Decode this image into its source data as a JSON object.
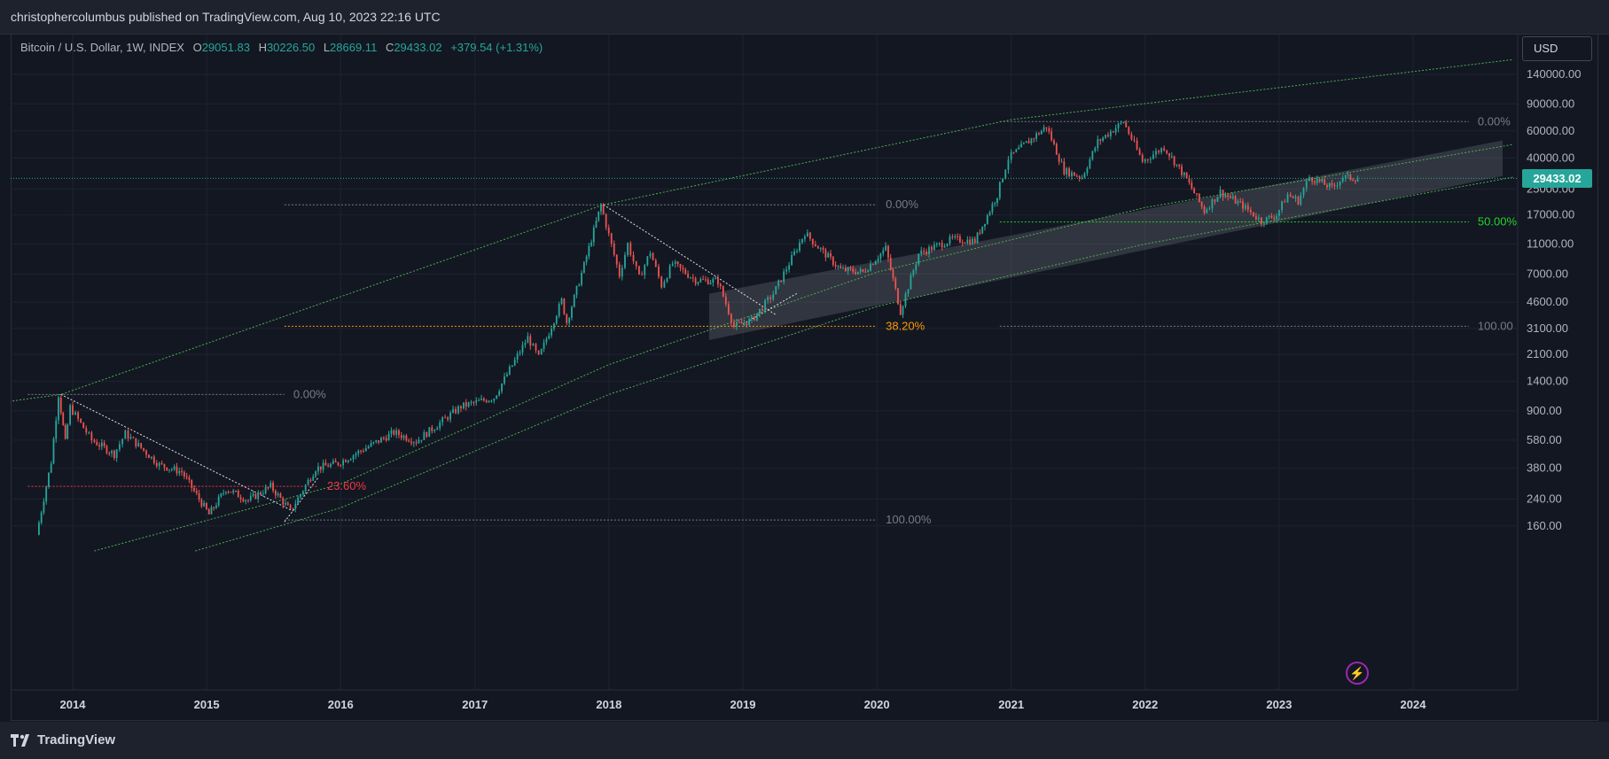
{
  "header": {
    "published": "christophercolumbus published on TradingView.com, Aug 10, 2023 22:16 UTC"
  },
  "legend": {
    "symbol": "Bitcoin / U.S. Dollar, 1W, INDEX",
    "o_label": "O",
    "o_value": "29051.83",
    "h_label": "H",
    "h_value": "30226.50",
    "l_label": "L",
    "l_value": "28669.11",
    "c_label": "C",
    "c_value": "29433.02",
    "change": "+379.54 (+1.31%)"
  },
  "currency_button": "USD",
  "last_price": "29433.02",
  "footer": {
    "brand": "TradingView"
  },
  "colors": {
    "background": "#131722",
    "up": "#26a69a",
    "down": "#ef5350",
    "green_fib": "#4caf50",
    "orange_fib": "#ff9800",
    "red_fib": "#f23645"
  },
  "icons": [
    "tradingview-logo-icon",
    "lightning-bolt-icon"
  ],
  "chart_data": {
    "type": "candlestick",
    "interval": "1W",
    "scale": "log",
    "grid": true,
    "x_ticks": [
      "2014",
      "2015",
      "2016",
      "2017",
      "2018",
      "2019",
      "2020",
      "2021",
      "2022",
      "2023",
      "2024"
    ],
    "y_ticks": [
      "140000.00",
      "90000.00",
      "60000.00",
      "40000.00",
      "25000.00",
      "17000.00",
      "11000.00",
      "7000.00",
      "4600.00",
      "3100.00",
      "2100.00",
      "1400.00",
      "900.00",
      "580.00",
      "380.00",
      "240.00",
      "160.00"
    ],
    "ylim": [
      110,
      190000
    ],
    "price_series": [
      {
        "date": "2013-10",
        "price": 140
      },
      {
        "date": "2013-11-10",
        "price": 420
      },
      {
        "date": "2013-11-30",
        "price": 1150
      },
      {
        "date": "2013-12-18",
        "price": 560
      },
      {
        "date": "2014-01",
        "price": 950
      },
      {
        "date": "2014-03",
        "price": 580
      },
      {
        "date": "2014-05",
        "price": 470
      },
      {
        "date": "2014-06",
        "price": 640
      },
      {
        "date": "2014-09",
        "price": 400
      },
      {
        "date": "2014-11",
        "price": 360
      },
      {
        "date": "2015-01-14",
        "price": 190
      },
      {
        "date": "2015-03",
        "price": 280
      },
      {
        "date": "2015-05",
        "price": 235
      },
      {
        "date": "2015-07",
        "price": 290
      },
      {
        "date": "2015-08-24",
        "price": 200
      },
      {
        "date": "2015-11",
        "price": 380
      },
      {
        "date": "2016-01",
        "price": 410
      },
      {
        "date": "2016-06",
        "price": 650
      },
      {
        "date": "2016-08",
        "price": 570
      },
      {
        "date": "2016-12",
        "price": 960
      },
      {
        "date": "2017-03",
        "price": 1100
      },
      {
        "date": "2017-06",
        "price": 2700
      },
      {
        "date": "2017-07",
        "price": 2000
      },
      {
        "date": "2017-09",
        "price": 4700
      },
      {
        "date": "2017-09-15",
        "price": 3400
      },
      {
        "date": "2017-11",
        "price": 8000
      },
      {
        "date": "2017-12-17",
        "price": 19800
      },
      {
        "date": "2018-02-06",
        "price": 6900
      },
      {
        "date": "2018-03",
        "price": 11000
      },
      {
        "date": "2018-04",
        "price": 6600
      },
      {
        "date": "2018-05",
        "price": 9800
      },
      {
        "date": "2018-06",
        "price": 5900
      },
      {
        "date": "2018-07",
        "price": 8200
      },
      {
        "date": "2018-09",
        "price": 6400
      },
      {
        "date": "2018-11",
        "price": 6300
      },
      {
        "date": "2018-12-15",
        "price": 3200
      },
      {
        "date": "2019-02",
        "price": 3500
      },
      {
        "date": "2019-04",
        "price": 5200
      },
      {
        "date": "2019-06-26",
        "price": 13000
      },
      {
        "date": "2019-08",
        "price": 10500
      },
      {
        "date": "2019-10",
        "price": 7500
      },
      {
        "date": "2019-12",
        "price": 7200
      },
      {
        "date": "2020-02",
        "price": 10300
      },
      {
        "date": "2020-03-12",
        "price": 4000
      },
      {
        "date": "2020-05",
        "price": 9500
      },
      {
        "date": "2020-08",
        "price": 11800
      },
      {
        "date": "2020-10",
        "price": 11500
      },
      {
        "date": "2020-12",
        "price": 23000
      },
      {
        "date": "2021-01",
        "price": 40000
      },
      {
        "date": "2021-04-14",
        "price": 64000
      },
      {
        "date": "2021-06",
        "price": 33000
      },
      {
        "date": "2021-07-20",
        "price": 30000
      },
      {
        "date": "2021-09",
        "price": 51000
      },
      {
        "date": "2021-11-10",
        "price": 69000
      },
      {
        "date": "2022-01",
        "price": 38000
      },
      {
        "date": "2022-03",
        "price": 47000
      },
      {
        "date": "2022-05",
        "price": 29000
      },
      {
        "date": "2022-06-18",
        "price": 18000
      },
      {
        "date": "2022-08",
        "price": 24000
      },
      {
        "date": "2022-10",
        "price": 19500
      },
      {
        "date": "2022-11-21",
        "price": 15500
      },
      {
        "date": "2023-01",
        "price": 17000
      },
      {
        "date": "2023-02",
        "price": 23000
      },
      {
        "date": "2023-03",
        "price": 21000
      },
      {
        "date": "2023-04",
        "price": 30000
      },
      {
        "date": "2023-06",
        "price": 25500
      },
      {
        "date": "2023-07",
        "price": 30000
      },
      {
        "date": "2023-08-10",
        "price": 29433.02
      }
    ],
    "annotations": {
      "fib_2014_2015": {
        "levels": [
          {
            "label": "0.00%",
            "price": 1150,
            "from": "2013-09",
            "to": "2015-08"
          },
          {
            "label": "23.60%",
            "price": 290,
            "from": "2013-09",
            "to": "2015-11"
          },
          {
            "label": "100.00%",
            "price": 175,
            "from": "2015-08",
            "to": "2020-01"
          }
        ]
      },
      "fib_2018": {
        "levels": [
          {
            "label": "0.00%",
            "price": 19800,
            "from": "2015-08",
            "to": "2020-01"
          },
          {
            "label": "38.20%",
            "price": 3200,
            "from": "2015-08",
            "to": "2020-01"
          }
        ]
      },
      "fib_2022": {
        "levels": [
          {
            "label": "0.00%",
            "price": 69000,
            "from": "2020-12",
            "to": "2024-06"
          },
          {
            "label": "50.00%",
            "price": 15300,
            "from": "2020-12",
            "to": "2024-06"
          },
          {
            "label": "100.00",
            "price": 3200,
            "from": "2020-12",
            "to": "2024-06"
          }
        ]
      },
      "trendline_2014": {
        "from": {
          "date": "2013-11-30",
          "price": 1150
        },
        "to": {
          "date": "2015-08-24",
          "price": 200
        }
      },
      "trendline_2018": {
        "from": {
          "date": "2017-12-17",
          "price": 19800
        },
        "to": {
          "date": "2019-04",
          "price": 3800
        }
      },
      "breakout_line_2019": {
        "from": {
          "date": "2019-01",
          "price": 3300
        },
        "to": {
          "date": "2019-06",
          "price": 5300
        }
      },
      "breakout_line_2015": {
        "from": {
          "date": "2015-08",
          "price": 170
        },
        "to": {
          "date": "2015-11",
          "price": 330
        }
      },
      "upper_curve": [
        {
          "date": "2013-01",
          "price": 900
        },
        {
          "date": "2013-11-30",
          "price": 1150
        },
        {
          "date": "2017-12-17",
          "price": 19800
        },
        {
          "date": "2021-01",
          "price": 71000
        },
        {
          "date": "2024-10",
          "price": 175000
        }
      ],
      "middle_curve": [
        {
          "date": "2014-03",
          "price": 110
        },
        {
          "date": "2016-01",
          "price": 300
        },
        {
          "date": "2018-01",
          "price": 1800
        },
        {
          "date": "2020-01",
          "price": 7200
        },
        {
          "date": "2022-01",
          "price": 19000
        },
        {
          "date": "2024-10",
          "price": 49000
        }
      ],
      "lower_curve": [
        {
          "date": "2014-12",
          "price": 110
        },
        {
          "date": "2016-01",
          "price": 210
        },
        {
          "date": "2018-01",
          "price": 1150
        },
        {
          "date": "2020-01",
          "price": 4300
        },
        {
          "date": "2022-01",
          "price": 11000
        },
        {
          "date": "2024-10",
          "price": 30000
        }
      ],
      "channel_band": [
        {
          "date": "2018-10",
          "price": 5200
        },
        {
          "date": "2024-09",
          "price": 52000
        },
        {
          "date": "2024-09",
          "price": 30500
        },
        {
          "date": "2018-10",
          "price": 2600
        }
      ]
    }
  }
}
